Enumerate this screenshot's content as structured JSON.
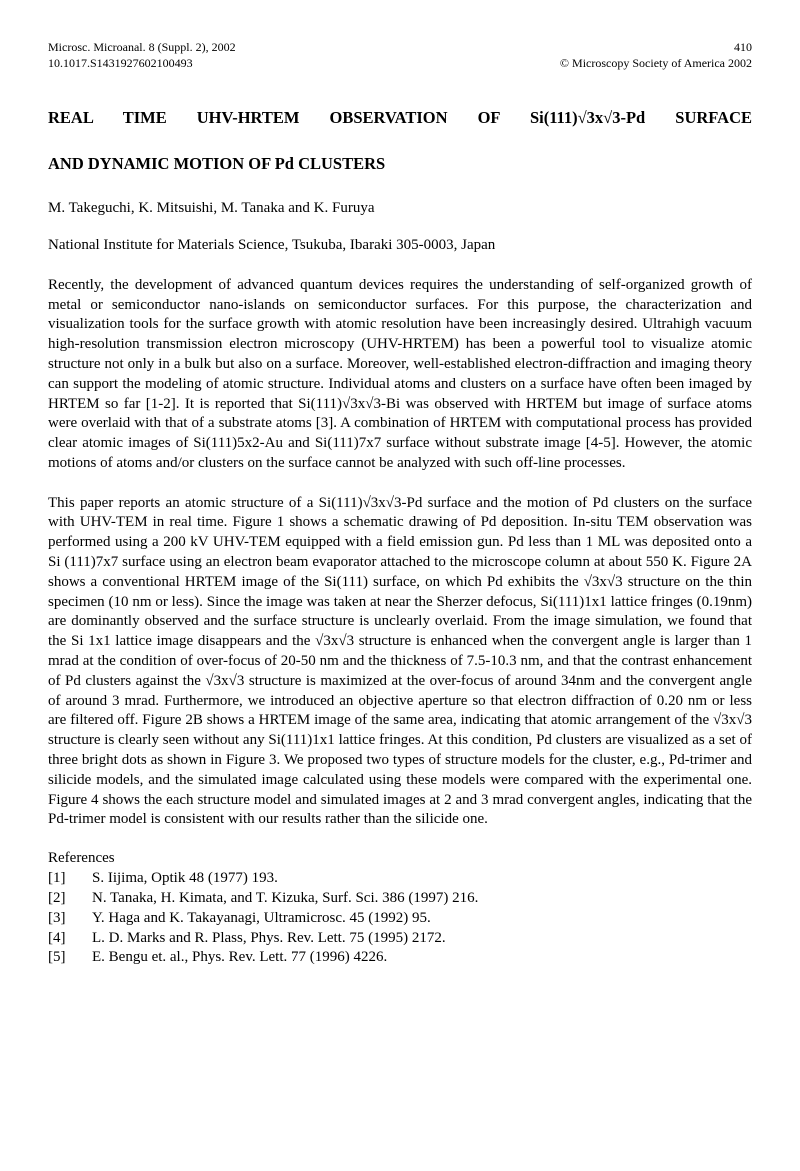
{
  "header": {
    "left_line1": "Microsc. Microanal. 8 (Suppl. 2), 2002",
    "left_line2": "10.1017.S1431927602100493",
    "right_line1": "410",
    "right_line2": "©   Microscopy Society of America 2002"
  },
  "title_line1": "REAL TIME UHV-HRTEM OBSERVATION OF Si(111)√3x√3-Pd SURFACE",
  "title_line2": "AND DYNAMIC MOTION OF Pd CLUSTERS",
  "authors": "M. Takeguchi, K. Mitsuishi, M. Tanaka and K. Furuya",
  "affiliation": "National Institute for Materials Science, Tsukuba, Ibaraki 305-0003, Japan",
  "para1": "Recently, the development of advanced quantum devices requires the understanding of self-organized growth of metal or semiconductor nano-islands on semiconductor surfaces. For this purpose, the characterization and visualization tools for the surface growth with atomic resolution have been increasingly desired. Ultrahigh vacuum high-resolution transmission electron microscopy (UHV-HRTEM) has been a powerful tool to visualize atomic structure not only in a bulk but also on a surface.  Moreover, well-established electron-diffraction and imaging theory can support the modeling of atomic structure. Individual atoms and clusters on a surface have often been imaged by HRTEM so far [1-2]. It is reported that Si(111)√3x√3-Bi was observed with HRTEM but image of surface atoms were overlaid with that of a substrate atoms [3]. A combination of HRTEM with computational process has provided clear atomic images of Si(111)5x2-Au and Si(111)7x7 surface without substrate image [4-5]. However, the atomic motions of atoms and/or clusters on the surface cannot be analyzed with such off-line processes.",
  "para2": "This paper reports an atomic structure of a Si(111)√3x√3-Pd surface and the motion of Pd clusters on the surface with UHV-TEM in real time. Figure 1 shows a schematic drawing of Pd deposition. In-situ TEM observation was performed using a 200 kV UHV-TEM equipped with a field emission gun. Pd less than 1 ML was deposited onto a Si (111)7x7 surface using an electron beam evaporator attached to the microscope column at about 550 K. Figure 2A shows a conventional HRTEM image of the Si(111) surface, on which Pd exhibits the √3x√3 structure on the thin specimen (10 nm or less).  Since the image was taken at near the Sherzer defocus, Si(111)1x1 lattice fringes (0.19nm) are dominantly observed and the surface structure is unclearly overlaid. From the image simulation, we found that the Si 1x1 lattice image disappears and the √3x√3 structure is enhanced when the convergent angle is larger than 1 mrad at the condition of over-focus of 20-50 nm and the thickness of 7.5-10.3 nm, and that the contrast enhancement of Pd clusters against the √3x√3 structure is maximized at the over-focus of around 34nm and the convergent angle of around 3 mrad. Furthermore, we introduced an objective aperture so that electron diffraction of 0.20 nm or less are filtered off.  Figure 2B shows a HRTEM image of the same area, indicating that atomic arrangement of the √3x√3 structure is clearly seen without any Si(111)1x1 lattice fringes.  At this condition, Pd clusters are visualized as a set of three bright dots as shown in Figure 3. We proposed two types of structure models for the cluster, e.g., Pd-trimer and silicide models, and the simulated image calculated using these models were compared with the experimental one. Figure 4 shows the each structure model and simulated images at 2 and 3 mrad convergent angles, indicating that the Pd-trimer model is consistent with our results rather than the silicide one.",
  "refs_heading": "References",
  "references": [
    {
      "num": "[1]",
      "text": "S. Iijima, Optik 48 (1977) 193."
    },
    {
      "num": "[2]",
      "text": "N. Tanaka, H. Kimata, and T. Kizuka, Surf. Sci. 386 (1997) 216."
    },
    {
      "num": "[3]",
      "text": "Y. Haga and K. Takayanagi, Ultramicrosc. 45 (1992) 95."
    },
    {
      "num": "[4]",
      "text": "L. D. Marks and R. Plass, Phys. Rev. Lett. 75 (1995) 2172."
    },
    {
      "num": "[5]",
      "text": "E. Bengu et. al., Phys. Rev. Lett. 77 (1996) 4226."
    }
  ]
}
